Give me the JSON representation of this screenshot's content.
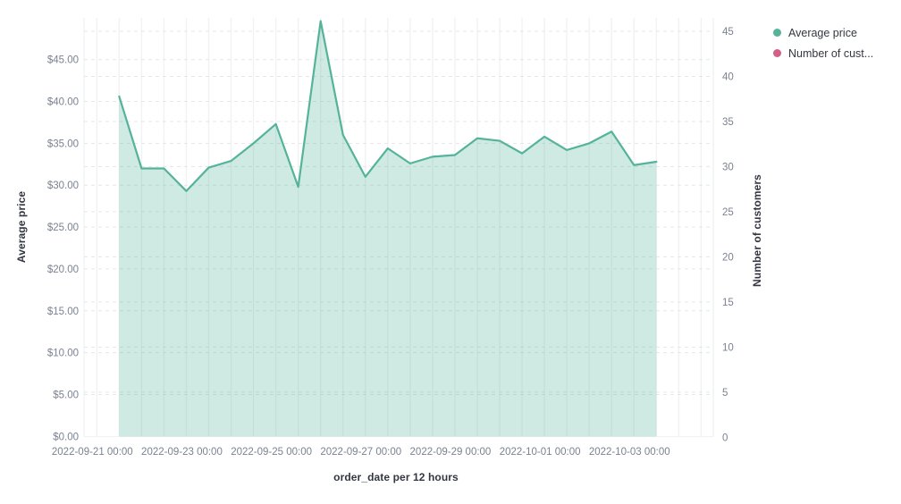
{
  "legend": {
    "position": "top-right",
    "items": [
      {
        "label": "Average price",
        "color": "#54B399"
      },
      {
        "label": "Number of cust...",
        "color": "#D36086"
      }
    ]
  },
  "chart_data": {
    "type": "area",
    "title": "",
    "xlabel": "order_date per 12 hours",
    "ylabel_left": "Average price",
    "ylabel_right": "Number of customers",
    "x": [
      "2022-09-21 12:00",
      "2022-09-22 00:00",
      "2022-09-22 12:00",
      "2022-09-23 00:00",
      "2022-09-23 12:00",
      "2022-09-24 00:00",
      "2022-09-24 12:00",
      "2022-09-25 00:00",
      "2022-09-25 12:00",
      "2022-09-26 00:00",
      "2022-09-26 12:00",
      "2022-09-27 00:00",
      "2022-09-27 12:00",
      "2022-09-28 00:00",
      "2022-09-28 12:00",
      "2022-09-29 00:00",
      "2022-09-29 12:00",
      "2022-09-30 00:00",
      "2022-09-30 12:00",
      "2022-10-01 00:00",
      "2022-10-01 12:00",
      "2022-10-02 00:00",
      "2022-10-02 12:00",
      "2022-10-03 00:00",
      "2022-10-03 12:00"
    ],
    "series": [
      {
        "name": "Average price",
        "axis": "left",
        "color": "#54B399",
        "fill_opacity": 0.28,
        "values": [
          40.6,
          32.0,
          32.0,
          29.3,
          32.1,
          32.9,
          35.0,
          37.3,
          29.8,
          49.6,
          36.0,
          31.0,
          34.4,
          32.6,
          33.4,
          33.6,
          35.6,
          35.3,
          33.8,
          35.8,
          34.2,
          35.0,
          36.4,
          32.4,
          32.8
        ]
      },
      {
        "name": "Number of customers",
        "axis": "right",
        "color": "#D36086",
        "values": []
      }
    ],
    "left_axis": {
      "title": "Average price",
      "tick_labels": [
        "$0.00",
        "$5.00",
        "$10.00",
        "$15.00",
        "$20.00",
        "$25.00",
        "$30.00",
        "$35.00",
        "$40.00",
        "$45.00"
      ],
      "tick_step": 5,
      "range": [
        0,
        50
      ]
    },
    "right_axis": {
      "title": "Number of customers",
      "tick_labels": [
        "0",
        "5",
        "10",
        "15",
        "20",
        "25",
        "30",
        "35",
        "40",
        "45"
      ],
      "tick_step": 5,
      "range": [
        0,
        46.5
      ]
    },
    "x_axis": {
      "title": "order_date per 12 hours",
      "tick_labels": [
        "2022-09-21 00:00",
        "2022-09-23 00:00",
        "2022-09-25 00:00",
        "2022-09-27 00:00",
        "2022-09-29 00:00",
        "2022-10-01 00:00",
        "2022-10-03 00:00"
      ],
      "tick_interval": "2 days"
    },
    "grid": true,
    "legend_position": "right",
    "colors": {
      "tick_label": "#7A8291",
      "axis_title": "#343741",
      "grid_vertical": "#F1F2F4",
      "grid_dashed": "#E4E7EA"
    }
  }
}
